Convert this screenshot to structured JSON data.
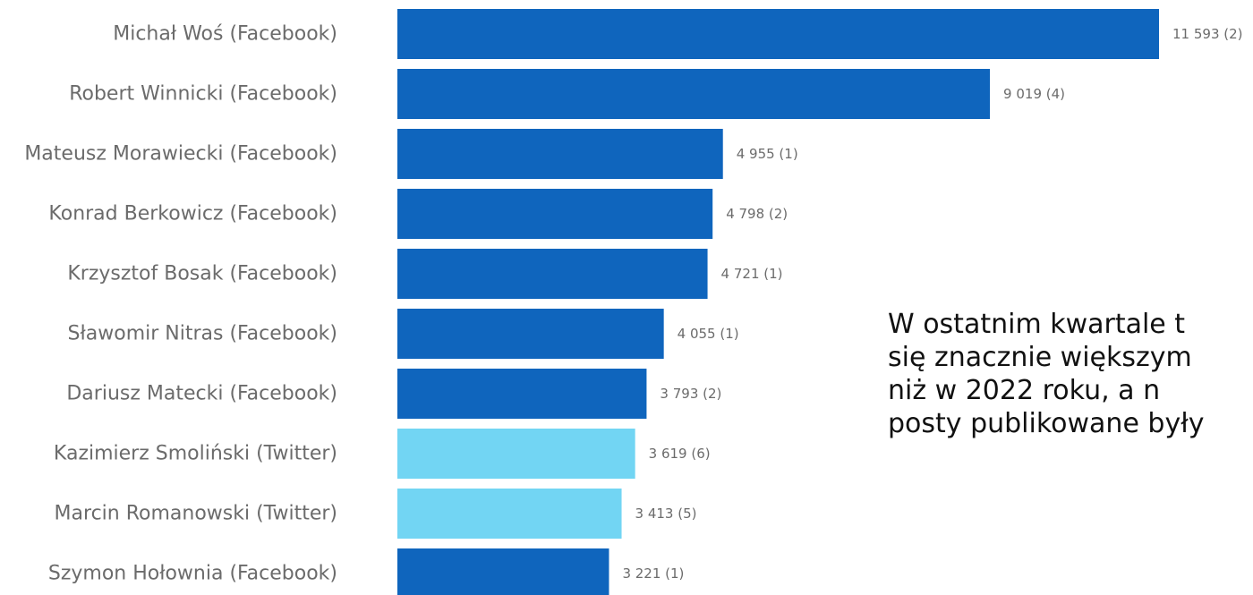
{
  "chart_data": {
    "type": "bar",
    "orientation": "horizontal",
    "categories": [
      "Michał Woś (Facebook)",
      "Robert Winnicki (Facebook)",
      "Mateusz Morawiecki (Facebook)",
      "Konrad Berkowicz (Facebook)",
      "Krzysztof Bosak (Facebook)",
      "Sławomir Nitras (Facebook)",
      "Dariusz Matecki (Facebook)",
      "Kazimierz Smoliński (Twitter)",
      "Marcin Romanowski (Twitter)",
      "Szymon Hołownia (Facebook)"
    ],
    "values": [
      11593,
      9019,
      4955,
      4798,
      4721,
      4055,
      3793,
      3619,
      3413,
      3221
    ],
    "value_labels": [
      "11 593 (2)",
      "9 019 (4)",
      "4 955 (1)",
      "4 798 (2)",
      "4 721 (1)",
      "4 055 (1)",
      "3 793 (2)",
      "3 619 (6)",
      "3 413 (5)",
      "3 221 (1)"
    ],
    "platforms": [
      "Facebook",
      "Facebook",
      "Facebook",
      "Facebook",
      "Facebook",
      "Facebook",
      "Facebook",
      "Twitter",
      "Twitter",
      "Facebook"
    ],
    "colors": {
      "Facebook": "#0f65bd",
      "Twitter": "#72d5f3"
    },
    "xlim": [
      0,
      11593
    ],
    "grid": false,
    "legend": "none",
    "title": "",
    "xlabel": "",
    "ylabel": ""
  },
  "annotation": {
    "lines": [
      "W ostatnim kwartale t",
      "się znacznie większym",
      "niż w 2022 roku, a n",
      "posty publikowane były"
    ]
  }
}
